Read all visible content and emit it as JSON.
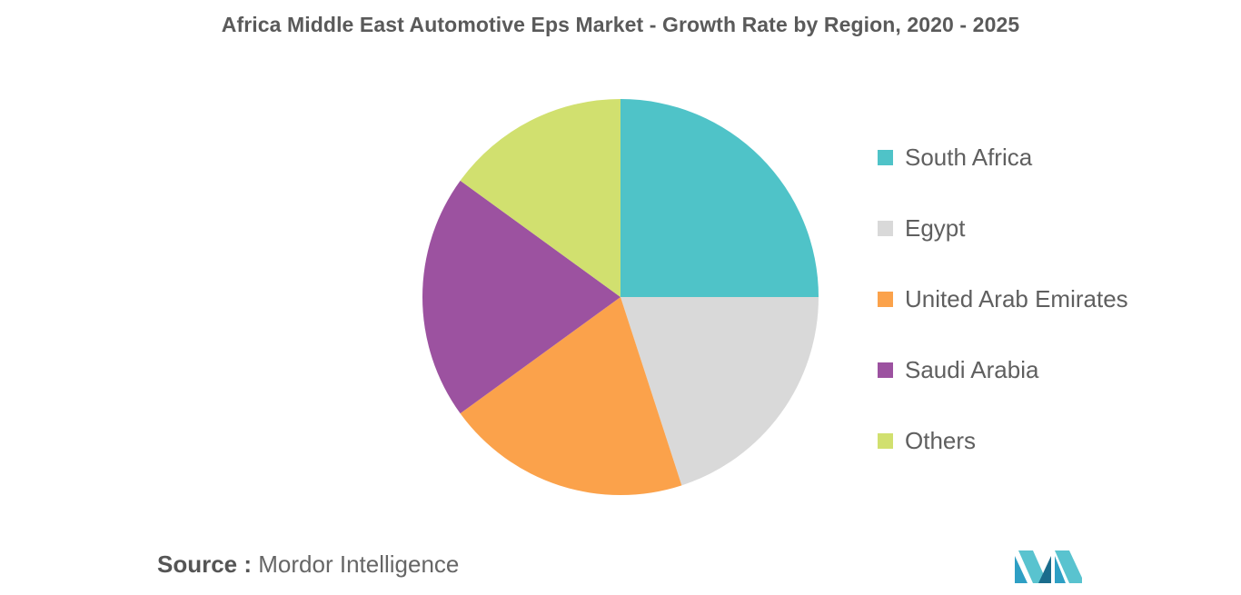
{
  "title": "Africa Middle East Automotive Eps Market - Growth Rate by Region, 2020 - 2025",
  "source": {
    "label": "Source :",
    "value": "Mordor Intelligence"
  },
  "logo_icon": "mordor-intelligence-logo-icon",
  "chart_data": {
    "type": "pie",
    "title": "Africa Middle East Automotive Eps Market - Growth Rate by Region, 2020 - 2025",
    "legend_position": "right",
    "start_angle_deg": 0,
    "direction": "clockwise",
    "slices": [
      {
        "label": "South Africa",
        "value": 25,
        "color": "#4fc3c8"
      },
      {
        "label": "Egypt",
        "value": 20,
        "color": "#d9d9d9"
      },
      {
        "label": "United Arab Emirates",
        "value": 20,
        "color": "#fba24b"
      },
      {
        "label": "Saudi Arabia",
        "value": 20,
        "color": "#9c52a0"
      },
      {
        "label": "Others",
        "value": 15,
        "color": "#d1e06f"
      }
    ]
  }
}
